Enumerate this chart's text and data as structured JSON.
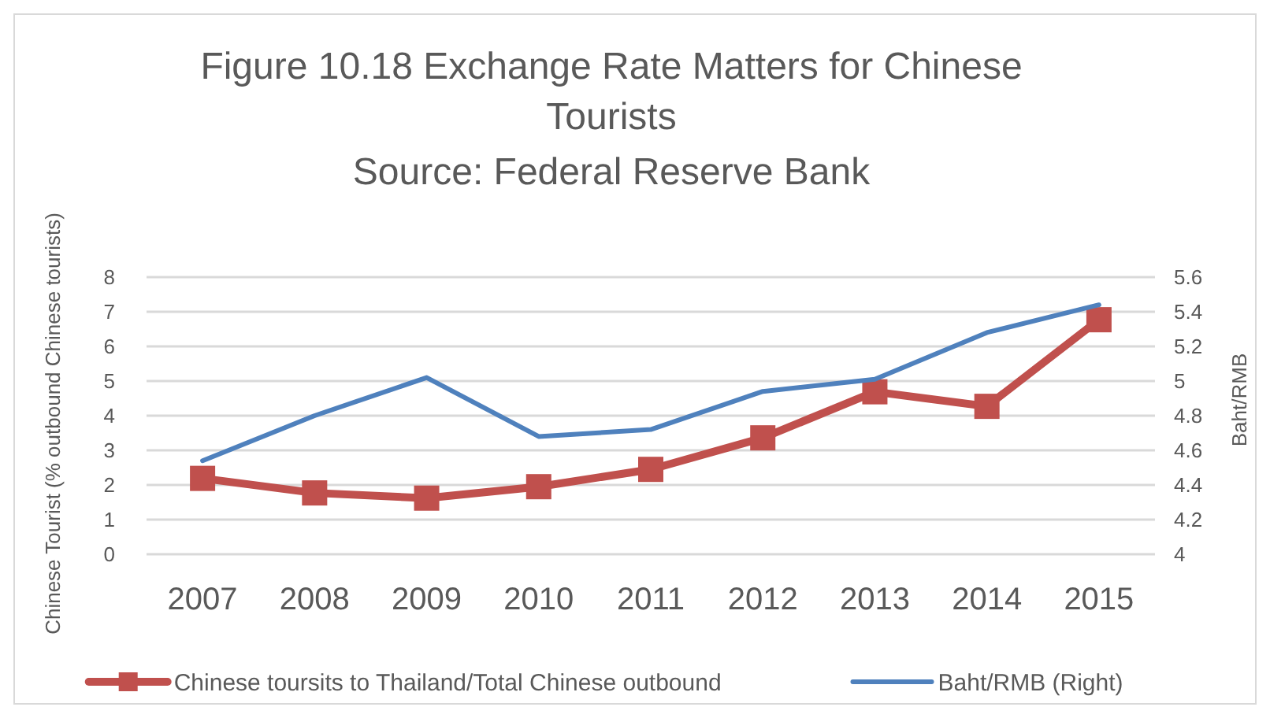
{
  "chart_data": {
    "type": "line",
    "title": "Figure 10.18   Exchange Rate Matters for Chinese Tourists",
    "subtitle": "Source: Federal Reserve Bank",
    "ylabel": "Chinese Tourist  (% outbound Chinese tourists)",
    "y2label": "Baht/RMB",
    "categories": [
      "2007",
      "2008",
      "2009",
      "2010",
      "2011",
      "2012",
      "2013",
      "2014",
      "2015"
    ],
    "series": [
      {
        "name": "Chinese toursits to Thailand/Total Chinese outbound",
        "color": "#c0504d",
        "marker": "square",
        "values": [
          2.19,
          1.77,
          1.62,
          1.95,
          2.45,
          3.36,
          4.69,
          4.27,
          6.77
        ]
      },
      {
        "name": "Baht/RMB (Right)",
        "color": "#4f81bd",
        "axis": "y2",
        "marker": "none",
        "values": [
          4.54,
          4.8,
          5.02,
          4.68,
          4.72,
          4.94,
          5.01,
          5.28,
          5.44
        ]
      }
    ],
    "ylim": [
      0,
      8
    ],
    "yticks": [
      0,
      1,
      2,
      3,
      4,
      5,
      6,
      7,
      8
    ],
    "y2lim": [
      4,
      5.6
    ],
    "y2ticks": [
      {
        "value": 4,
        "label": "4"
      },
      {
        "value": 4.2,
        "label": "4.2"
      },
      {
        "value": 4.4,
        "label": "4.4"
      },
      {
        "value": 4.6,
        "label": "4.6"
      },
      {
        "value": 4.8,
        "label": "4.8"
      },
      {
        "value": 5,
        "label": "5"
      },
      {
        "value": 5.2,
        "label": "5.2"
      },
      {
        "value": 5.4,
        "label": "5.4"
      },
      {
        "value": 5.6,
        "label": "5.6"
      }
    ],
    "grid": "y",
    "legend": "bottom"
  }
}
